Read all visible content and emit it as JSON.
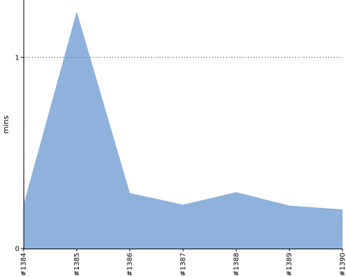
{
  "chart_data": {
    "type": "area",
    "title": "",
    "xlabel": "",
    "ylabel": "mins",
    "categories": [
      "#1384",
      "#1385",
      "#1386",
      "#1387",
      "#1388",
      "#1389",
      "#1390"
    ],
    "series": [
      {
        "values": [
          0.23,
          1.24,
          0.29,
          0.23,
          0.295,
          0.225,
          0.205
        ]
      }
    ],
    "ylim": [
      0,
      1.3
    ],
    "yticks": [
      {
        "value": 0,
        "label": "0"
      },
      {
        "value": 1,
        "label": "1"
      }
    ],
    "reference_line": {
      "value": 1,
      "style": "dashed"
    },
    "grid": false,
    "legend": "none",
    "colors": {
      "area_fill": "#8fb2dc",
      "axis": "#000000",
      "reference_line": "#777777"
    }
  }
}
